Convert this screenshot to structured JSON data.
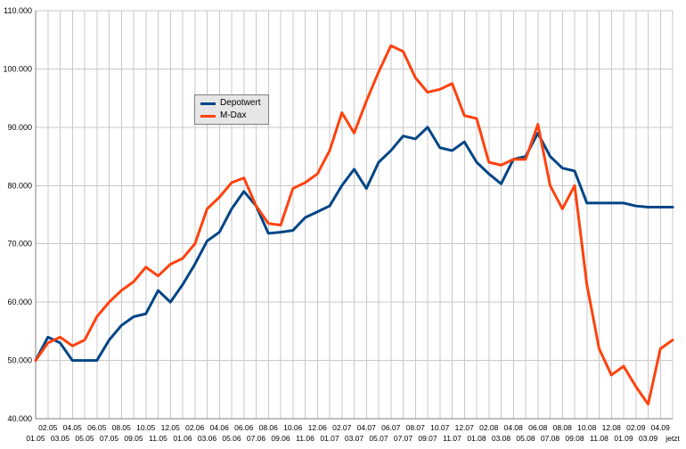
{
  "chart_data": {
    "type": "line",
    "title": "",
    "xlabel": "",
    "ylabel": "",
    "grid": true,
    "legend_position": "inset-top-left",
    "ylim": [
      40000,
      110000
    ],
    "y_ticks": [
      40000,
      50000,
      60000,
      70000,
      80000,
      90000,
      100000,
      110000
    ],
    "y_tick_labels": [
      "40.000",
      "50.000",
      "60.000",
      "70.000",
      "80.000",
      "90.000",
      "100.000",
      "110.000"
    ],
    "categories": [
      "01.05",
      "02.05",
      "03.05",
      "04.05",
      "05.05",
      "06.05",
      "07.05",
      "08.05",
      "09.05",
      "10.05",
      "11.05",
      "12.05",
      "01.06",
      "02.06",
      "03.06",
      "04.06",
      "05.06",
      "06.06",
      "07.06",
      "08.06",
      "09.06",
      "10.06",
      "11.06",
      "12.06",
      "01.07",
      "02.07",
      "03.07",
      "04.07",
      "05.07",
      "06.07",
      "07.07",
      "08.07",
      "09.07",
      "10.07",
      "11.07",
      "12.07",
      "01.08",
      "02.08",
      "03.08",
      "04.08",
      "05.08",
      "06.08",
      "07.08",
      "08.08",
      "09.08",
      "10.08",
      "11.08",
      "12.08",
      "01.09",
      "02.09",
      "03.09",
      "04.09",
      "jetzt"
    ],
    "series": [
      {
        "name": "Depotwert",
        "color": "#004586",
        "values": [
          50000,
          54000,
          53000,
          50000,
          50000,
          50000,
          53500,
          56000,
          57500,
          58000,
          62000,
          60000,
          63000,
          66500,
          70500,
          72000,
          76000,
          79000,
          76500,
          71800,
          72000,
          72300,
          74500,
          75500,
          76500,
          80000,
          82800,
          79500,
          84000,
          86000,
          88500,
          88000,
          90000,
          86500,
          86000,
          87500,
          84000,
          82000,
          80300,
          84500,
          85000,
          89000,
          85000,
          83000,
          82500,
          77000,
          77000,
          77000,
          77000,
          76500,
          76300,
          76300,
          76300
        ]
      },
      {
        "name": "M-Dax",
        "color": "#FF420E",
        "values": [
          50000,
          53000,
          54000,
          52500,
          53500,
          57500,
          60000,
          62000,
          63500,
          66000,
          64500,
          66500,
          67500,
          70000,
          76000,
          78000,
          80500,
          81300,
          76500,
          73500,
          73200,
          79500,
          80500,
          82000,
          86000,
          92500,
          89000,
          94500,
          99500,
          104000,
          103000,
          98500,
          96000,
          96500,
          97500,
          92000,
          91500,
          84000,
          83500,
          84500,
          84500,
          90500,
          80000,
          76000,
          80000,
          63000,
          52000,
          47500,
          49000,
          45500,
          42500,
          52000,
          53500
        ]
      }
    ],
    "style": {
      "grid_color": "#c9c9c9",
      "axis_color": "#808080",
      "line_width": 3
    }
  }
}
